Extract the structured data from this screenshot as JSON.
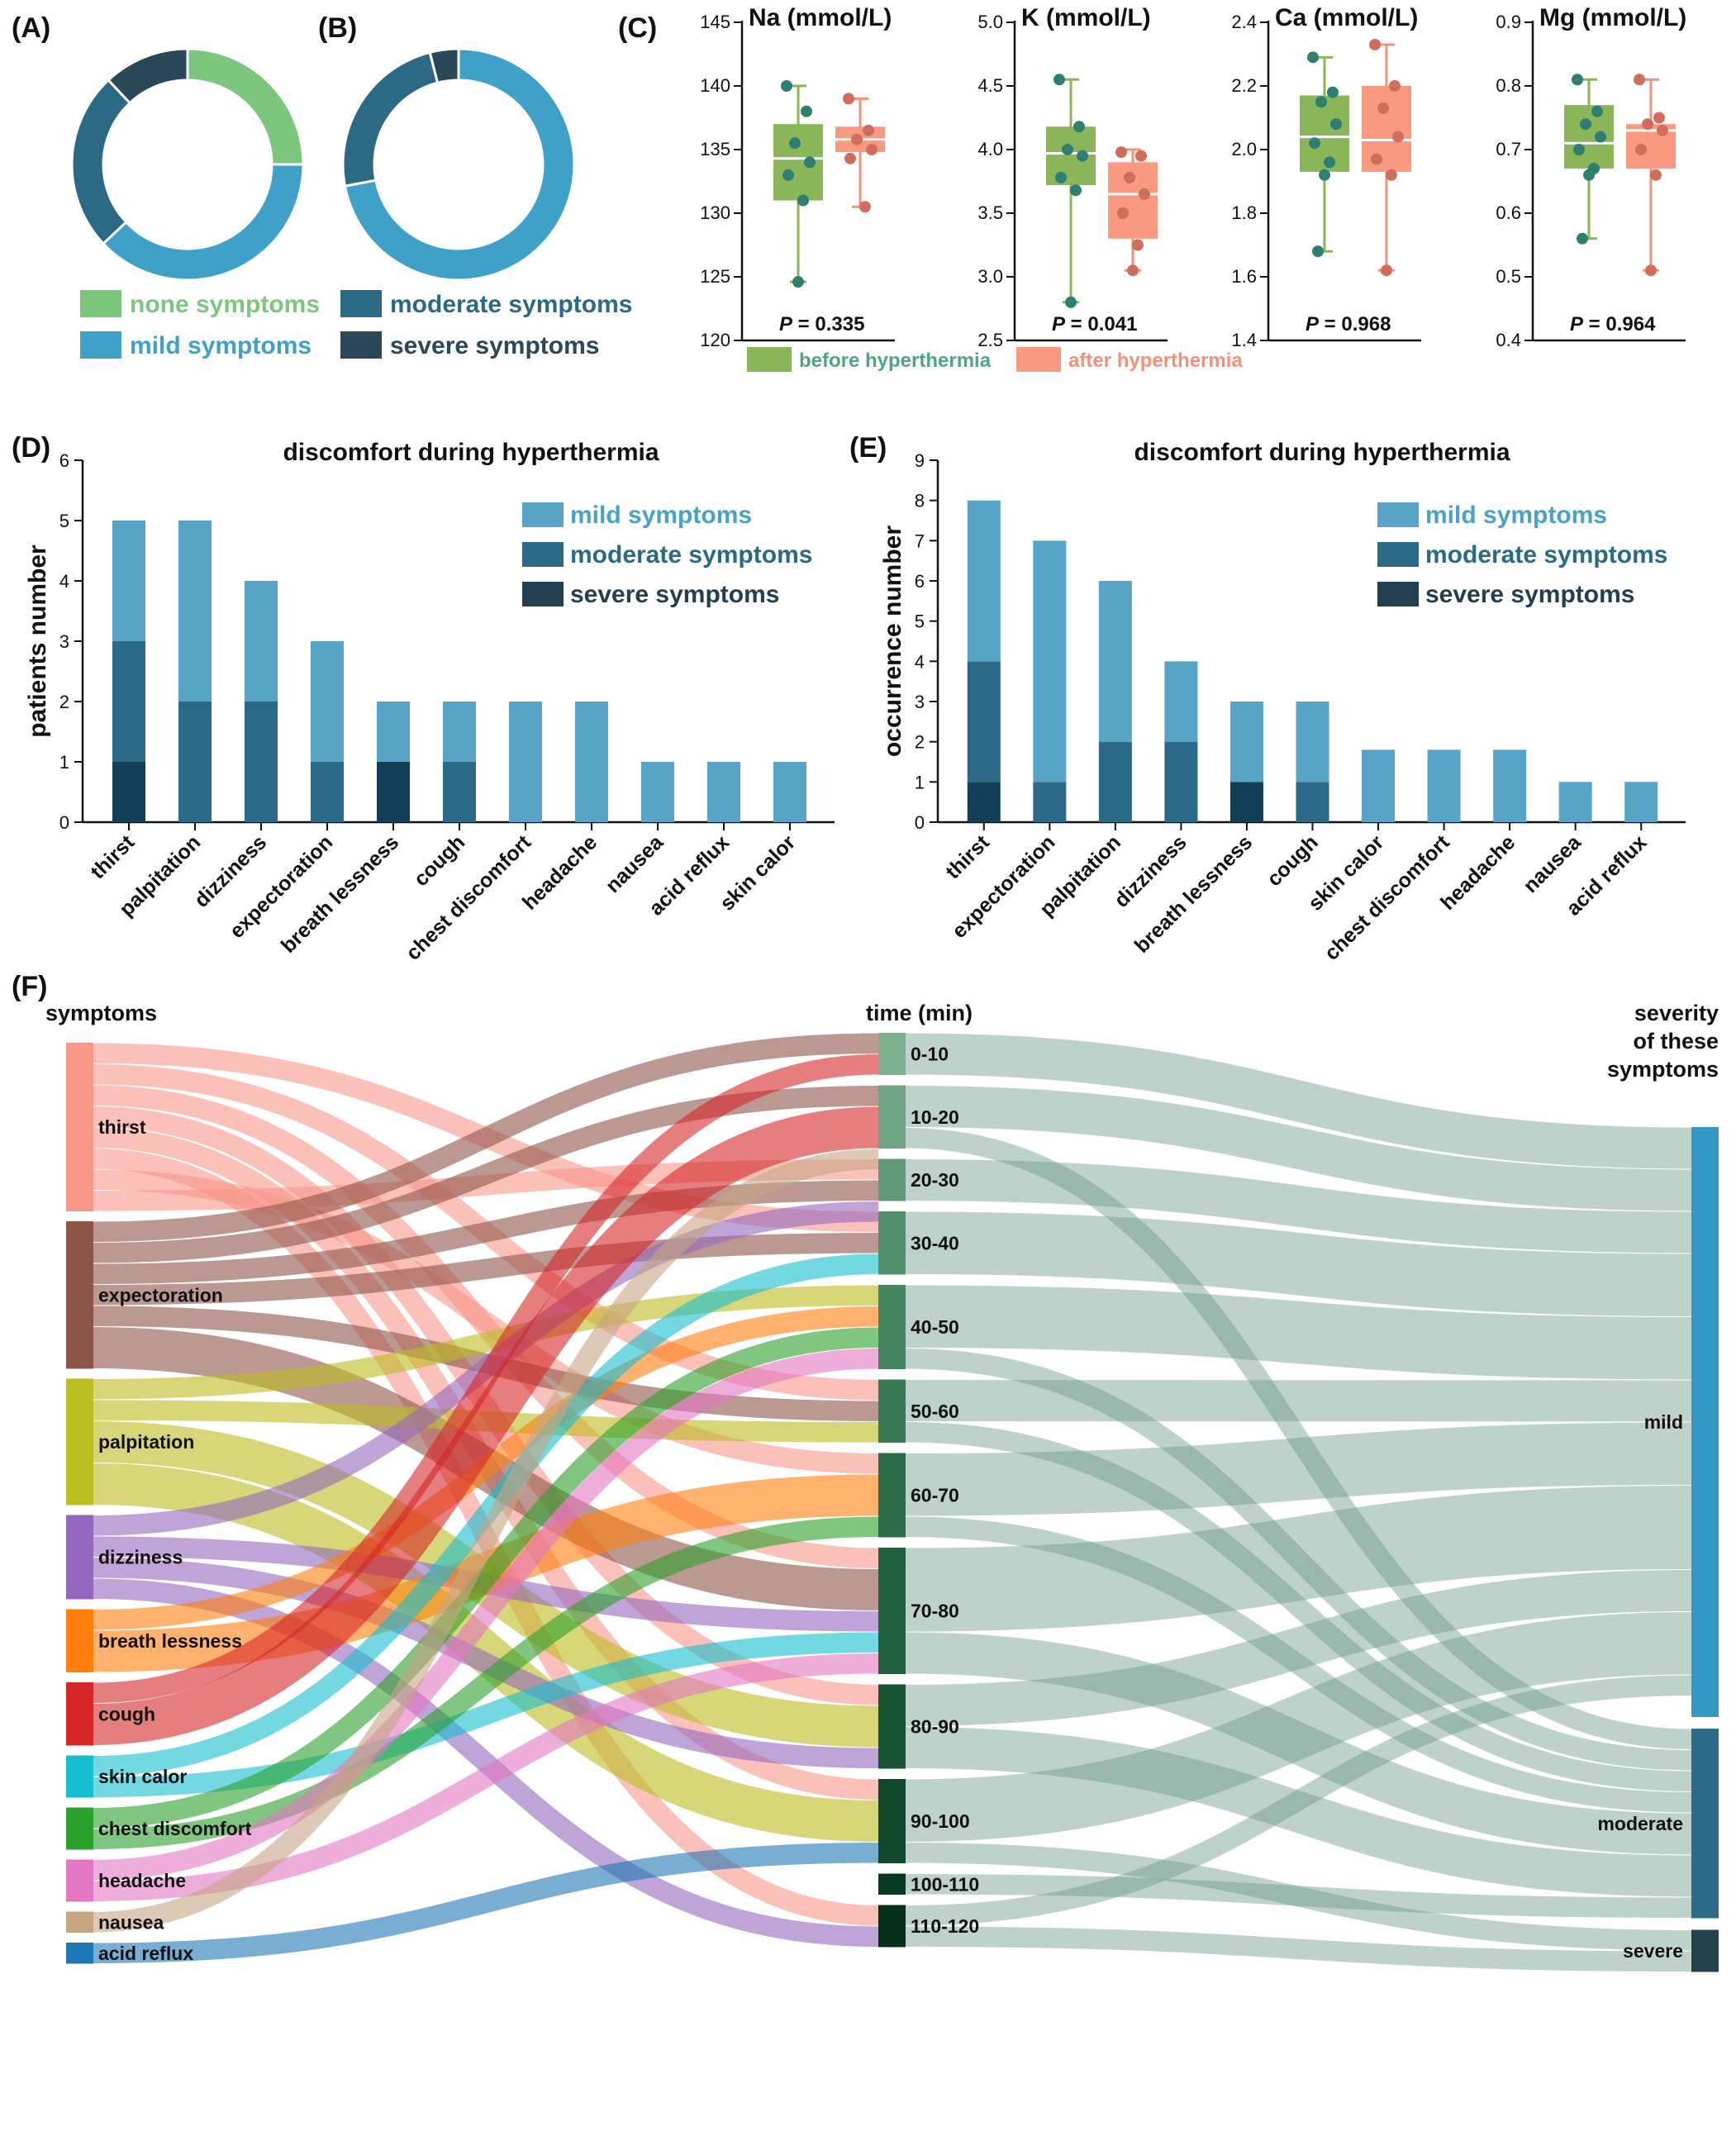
{
  "chart_data": [
    {
      "panel": "(A)",
      "type": "pie",
      "labels": [
        "none symptoms",
        "mild symptoms",
        "moderate symptoms",
        "severe symptoms"
      ],
      "values": [
        25,
        38,
        25,
        12
      ],
      "colors": [
        "#7dc67d",
        "#3fa0c8",
        "#2b6984",
        "#2a4858"
      ]
    },
    {
      "panel": "(B)",
      "type": "pie",
      "labels": [
        "none symptoms",
        "mild symptoms",
        "moderate symptoms",
        "severe symptoms"
      ],
      "values": [
        0,
        72,
        24,
        4
      ],
      "colors": [
        "#7dc67d",
        "#3fa0c8",
        "#2b6984",
        "#2a4858"
      ]
    },
    {
      "panel": "(C)",
      "type": "box",
      "legend": [
        "before hyperthermia",
        "after hyperthermia"
      ],
      "plots": [
        {
          "title": "Na (mmol/L)",
          "ylim": [
            120,
            145
          ],
          "yticks": [
            120,
            125,
            130,
            135,
            140,
            145
          ],
          "p_label": "P",
          "p_value": "= 0.335",
          "before": {
            "min": 124.6,
            "q1": 131,
            "median": 134.3,
            "q3": 137,
            "max": 140,
            "points": [
              140,
              138,
              135.5,
              134,
              133,
              131,
              124.6
            ]
          },
          "after": {
            "min": 130.5,
            "q1": 134.8,
            "median": 135.8,
            "q3": 136.8,
            "max": 139,
            "points": [
              139,
              136.5,
              135.8,
              135,
              134.3,
              130.5
            ]
          }
        },
        {
          "title": "K (mmol/L)",
          "ylim": [
            2.5,
            5.0
          ],
          "yticks": [
            2.5,
            3.0,
            3.5,
            4.0,
            4.5,
            5.0
          ],
          "p_label": "P",
          "p_value": "= 0.041",
          "before": {
            "min": 2.8,
            "q1": 3.72,
            "median": 3.97,
            "q3": 4.18,
            "max": 4.55,
            "points": [
              4.55,
              4.18,
              4.0,
              3.95,
              3.78,
              3.68,
              2.8
            ]
          },
          "after": {
            "min": 3.05,
            "q1": 3.3,
            "median": 3.65,
            "q3": 3.9,
            "max": 4.0,
            "points": [
              3.98,
              3.95,
              3.78,
              3.65,
              3.5,
              3.25,
              3.05
            ]
          }
        },
        {
          "title": "Ca (mmol/L)",
          "ylim": [
            1.4,
            2.4
          ],
          "yticks": [
            1.4,
            1.6,
            1.8,
            2.0,
            2.2,
            2.4
          ],
          "p_label": "P",
          "p_value": "= 0.968",
          "before": {
            "min": 1.68,
            "q1": 1.93,
            "median": 2.04,
            "q3": 2.17,
            "max": 2.29,
            "points": [
              2.29,
              2.18,
              2.15,
              2.08,
              2.02,
              1.96,
              1.92,
              1.68
            ]
          },
          "after": {
            "min": 1.62,
            "q1": 1.93,
            "median": 2.03,
            "q3": 2.2,
            "max": 2.33,
            "points": [
              2.33,
              2.2,
              2.13,
              2.04,
              1.97,
              1.92,
              1.62
            ]
          }
        },
        {
          "title": "Mg (mmol/L)",
          "ylim": [
            0.4,
            0.9
          ],
          "yticks": [
            0.4,
            0.5,
            0.6,
            0.7,
            0.8,
            0.9
          ],
          "p_label": "P",
          "p_value": "= 0.964",
          "before": {
            "min": 0.56,
            "q1": 0.67,
            "median": 0.71,
            "q3": 0.77,
            "max": 0.81,
            "points": [
              0.81,
              0.76,
              0.74,
              0.72,
              0.7,
              0.67,
              0.66,
              0.56
            ]
          },
          "after": {
            "min": 0.51,
            "q1": 0.67,
            "median": 0.73,
            "q3": 0.74,
            "max": 0.81,
            "points": [
              0.81,
              0.75,
              0.74,
              0.73,
              0.7,
              0.66,
              0.51
            ]
          }
        }
      ]
    },
    {
      "panel": "(D)",
      "type": "bar",
      "stacked": true,
      "title": "discomfort during hyperthermia",
      "ylabel": "patients number",
      "ylim": [
        0,
        6
      ],
      "yticks": [
        0,
        1,
        2,
        3,
        4,
        5,
        6
      ],
      "categories": [
        "thirst",
        "palpitation",
        "dizziness",
        "expectoration",
        "breath lessness",
        "cough",
        "chest discomfort",
        "headache",
        "nausea",
        "acid reflux",
        "skin calor"
      ],
      "series": [
        {
          "name": "severe symptoms",
          "color": "#123f55",
          "values": [
            1,
            0,
            0,
            0,
            1,
            0,
            0,
            0,
            0,
            0,
            0
          ]
        },
        {
          "name": "moderate symptoms",
          "color": "#2b6a86",
          "values": [
            2,
            2,
            2,
            1,
            0,
            1,
            0,
            0,
            0,
            0,
            0
          ]
        },
        {
          "name": "mild symptoms",
          "color": "#58a4c6",
          "values": [
            2,
            3,
            2,
            2,
            1,
            1,
            2,
            2,
            1,
            1,
            1
          ]
        }
      ],
      "legend": [
        "mild symptoms",
        "moderate symptoms",
        "severe symptoms"
      ]
    },
    {
      "panel": "(E)",
      "type": "bar",
      "stacked": true,
      "title": "discomfort during hyperthermia",
      "ylabel": "occurrence number",
      "ylim": [
        0,
        9
      ],
      "yticks": [
        0,
        1,
        2,
        3,
        4,
        5,
        6,
        7,
        8,
        9
      ],
      "categories": [
        "thirst",
        "expectoration",
        "palpitation",
        "dizziness",
        "breath lessness",
        "cough",
        "skin calor",
        "chest discomfort",
        "headache",
        "nausea",
        "acid reflux"
      ],
      "series": [
        {
          "name": "severe symptoms",
          "color": "#123f55",
          "values": [
            1,
            0,
            0,
            0,
            1,
            0,
            0,
            0,
            0,
            0,
            0
          ]
        },
        {
          "name": "moderate symptoms",
          "color": "#2b6a86",
          "values": [
            3,
            1,
            2,
            2,
            0,
            1,
            0,
            0,
            0,
            0,
            0
          ]
        },
        {
          "name": "mild symptoms",
          "color": "#58a4c6",
          "values": [
            4,
            6,
            4,
            2,
            2,
            2,
            1.8,
            1.8,
            1.8,
            1,
            1
          ]
        }
      ],
      "legend": [
        "mild symptoms",
        "moderate symptoms",
        "severe symptoms"
      ]
    },
    {
      "panel": "(F)",
      "type": "sankey",
      "col_headers": {
        "symptoms": "symptoms",
        "time": "time (min)",
        "severity": "severity\nof these\nsymptoms"
      },
      "symptoms": [
        {
          "name": "thirst",
          "count": 8,
          "color": "#f8968a"
        },
        {
          "name": "expectoration",
          "count": 7,
          "color": "#8f5449"
        },
        {
          "name": "palpitation",
          "count": 6,
          "color": "#bcbd22"
        },
        {
          "name": "dizziness",
          "count": 4,
          "color": "#9467bd"
        },
        {
          "name": "breath lessness",
          "count": 3,
          "color": "#ff7f0e"
        },
        {
          "name": "cough",
          "count": 3,
          "color": "#d62728"
        },
        {
          "name": "skin calor",
          "count": 2,
          "color": "#17becf"
        },
        {
          "name": "chest discomfort",
          "count": 2,
          "color": "#2ca02c"
        },
        {
          "name": "headache",
          "count": 2,
          "color": "#e377c2"
        },
        {
          "name": "nausea",
          "count": 1,
          "color": "#c6a583"
        },
        {
          "name": "acid reflux",
          "count": 1,
          "color": "#1f77b4"
        }
      ],
      "times": [
        {
          "name": "0-10",
          "count": 2,
          "color": "#7fb08f"
        },
        {
          "name": "10-20",
          "count": 3,
          "color": "#6fa583"
        },
        {
          "name": "20-30",
          "count": 2,
          "color": "#609a76"
        },
        {
          "name": "30-40",
          "count": 3,
          "color": "#528f6a"
        },
        {
          "name": "40-50",
          "count": 4,
          "color": "#44845e"
        },
        {
          "name": "50-60",
          "count": 3,
          "color": "#367953"
        },
        {
          "name": "60-70",
          "count": 4,
          "color": "#2a6d48"
        },
        {
          "name": "70-80",
          "count": 6,
          "color": "#1f613e"
        },
        {
          "name": "80-90",
          "count": 4,
          "color": "#165434"
        },
        {
          "name": "90-100",
          "count": 4,
          "color": "#0e472a"
        },
        {
          "name": "100-110",
          "count": 1,
          "color": "#083a21"
        },
        {
          "name": "110-120",
          "count": 2,
          "color": "#042f19"
        }
      ],
      "severity": [
        {
          "name": "mild",
          "count": 28,
          "color": "#3399c4"
        },
        {
          "name": "moderate",
          "count": 9,
          "color": "#2a6a86"
        },
        {
          "name": "severe",
          "count": 2,
          "color": "#243f4e"
        }
      ],
      "links_symptom_time": [
        [
          "thirst",
          "30-40",
          1
        ],
        [
          "thirst",
          "50-60",
          1
        ],
        [
          "thirst",
          "70-80",
          1
        ],
        [
          "thirst",
          "80-90",
          1
        ],
        [
          "thirst",
          "90-100",
          1
        ],
        [
          "thirst",
          "110-120",
          1
        ],
        [
          "thirst",
          "60-70",
          1
        ],
        [
          "thirst",
          "20-30",
          1
        ],
        [
          "expectoration",
          "0-10",
          1
        ],
        [
          "expectoration",
          "10-20",
          1
        ],
        [
          "expectoration",
          "20-30",
          1
        ],
        [
          "expectoration",
          "30-40",
          1
        ],
        [
          "expectoration",
          "50-60",
          1
        ],
        [
          "expectoration",
          "70-80",
          2
        ],
        [
          "palpitation",
          "40-50",
          1
        ],
        [
          "palpitation",
          "50-60",
          1
        ],
        [
          "palpitation",
          "80-90",
          2
        ],
        [
          "palpitation",
          "90-100",
          2
        ],
        [
          "dizziness",
          "20-30",
          1
        ],
        [
          "dizziness",
          "70-80",
          1
        ],
        [
          "dizziness",
          "80-90",
          1
        ],
        [
          "dizziness",
          "110-120",
          1
        ],
        [
          "breath lessness",
          "40-50",
          1
        ],
        [
          "breath lessness",
          "60-70",
          2
        ],
        [
          "cough",
          "0-10",
          1
        ],
        [
          "cough",
          "10-20",
          2
        ],
        [
          "skin calor",
          "30-40",
          1
        ],
        [
          "skin calor",
          "70-80",
          1
        ],
        [
          "chest discomfort",
          "40-50",
          1
        ],
        [
          "chest discomfort",
          "60-70",
          1
        ],
        [
          "headache",
          "40-50",
          1
        ],
        [
          "headache",
          "70-80",
          1
        ],
        [
          "nausea",
          "10-20",
          1
        ],
        [
          "acid reflux",
          "90-100",
          1
        ]
      ],
      "links_time_severity": [
        [
          "0-10",
          "mild",
          2
        ],
        [
          "10-20",
          "mild",
          2
        ],
        [
          "10-20",
          "moderate",
          1
        ],
        [
          "20-30",
          "mild",
          2
        ],
        [
          "30-40",
          "mild",
          3
        ],
        [
          "40-50",
          "mild",
          3
        ],
        [
          "40-50",
          "moderate",
          1
        ],
        [
          "50-60",
          "mild",
          2
        ],
        [
          "50-60",
          "moderate",
          1
        ],
        [
          "60-70",
          "mild",
          3
        ],
        [
          "60-70",
          "moderate",
          1
        ],
        [
          "70-80",
          "mild",
          4
        ],
        [
          "70-80",
          "moderate",
          2
        ],
        [
          "80-90",
          "mild",
          2
        ],
        [
          "80-90",
          "moderate",
          2
        ],
        [
          "90-100",
          "mild",
          3
        ],
        [
          "90-100",
          "severe",
          1
        ],
        [
          "100-110",
          "moderate",
          1
        ],
        [
          "110-120",
          "mild",
          1
        ],
        [
          "110-120",
          "severe",
          1
        ]
      ]
    }
  ],
  "panel_labels": {
    "a": "(A)",
    "b": "(B)",
    "c": "(C)",
    "d": "(D)",
    "e": "(E)",
    "f": "(F)"
  },
  "legend_ab": {
    "none": "none symptoms",
    "mild": "mild symptoms",
    "moderate": "moderate symptoms",
    "severe": "severe symptoms"
  },
  "colors": {
    "none": "#7dc67d",
    "mild": "#3fa0c8",
    "moderate": "#2b6984",
    "severe": "#2a4858",
    "before": "#8ab558",
    "after": "#f99a80"
  }
}
